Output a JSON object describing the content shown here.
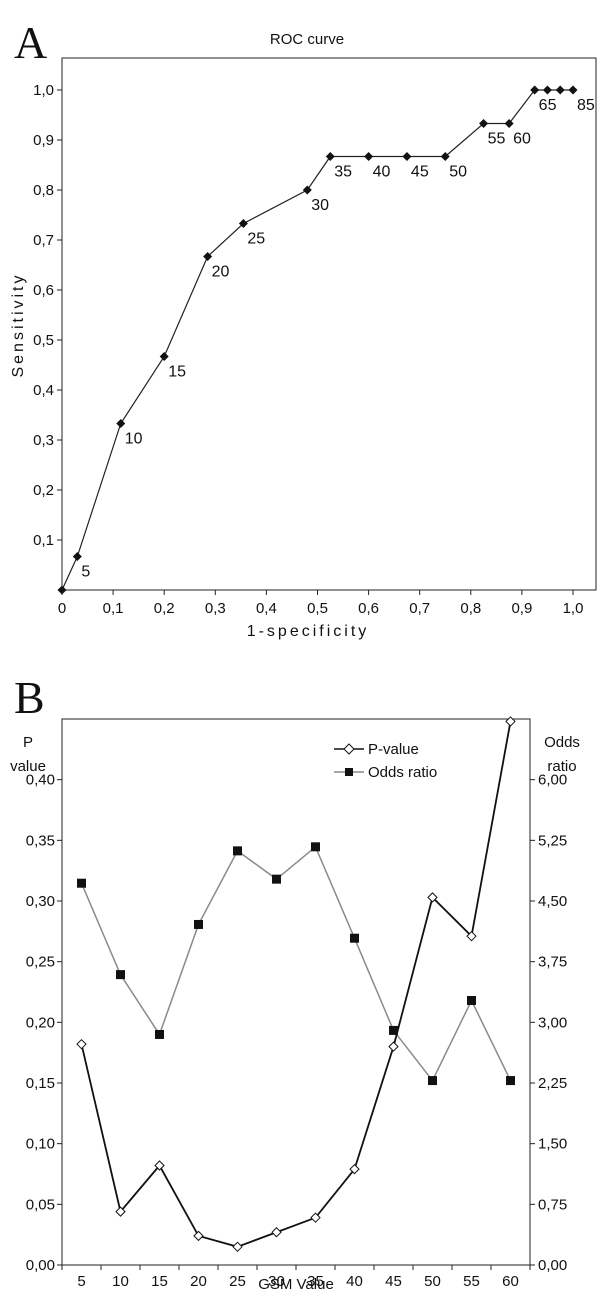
{
  "panels": [
    {
      "letter": "A",
      "chart_data": {
        "type": "line",
        "title": "ROC curve",
        "xlabel": "1-specificity",
        "ylabel": "Sensitivity",
        "xlim": [
          0,
          1
        ],
        "ylim": [
          0,
          1
        ],
        "x_ticks": [
          "0",
          "0,1",
          "0,2",
          "0,3",
          "0,4",
          "0,5",
          "0,6",
          "0,7",
          "0,8",
          "0,9",
          "1,0"
        ],
        "y_ticks": [
          "0,1",
          "0,2",
          "0,3",
          "0,4",
          "0,5",
          "0,6",
          "0,7",
          "0,8",
          "0,9",
          "1,0"
        ],
        "grid": false,
        "series": [
          {
            "x": [
              0,
              0.03,
              0.115,
              0.2,
              0.285,
              0.355,
              0.48,
              0.525,
              0.6,
              0.675,
              0.75,
              0.825,
              0.875,
              0.925,
              0.95,
              0.975,
              1.0
            ],
            "y": [
              0,
              0.067,
              0.333,
              0.467,
              0.667,
              0.733,
              0.8,
              0.867,
              0.867,
              0.867,
              0.867,
              0.933,
              0.933,
              1.0,
              1.0,
              1.0,
              1.0
            ],
            "labels": [
              "",
              "5",
              "10",
              "15",
              "20",
              "25",
              "30",
              "35",
              "40",
              "45",
              "50",
              "55",
              "60",
              "65",
              "",
              "",
              "85"
            ]
          }
        ]
      }
    },
    {
      "letter": "B",
      "chart_data": {
        "type": "line",
        "title": "",
        "xlabel": "GSM Value",
        "ylabel_left": [
          "P",
          "value"
        ],
        "ylabel_right": [
          "Odds",
          "ratio"
        ],
        "categories": [
          "5",
          "10",
          "15",
          "20",
          "25",
          "30",
          "35",
          "40",
          "45",
          "50",
          "55",
          "60"
        ],
        "ylim_left": [
          0,
          0.45
        ],
        "ylim_right": [
          0,
          6.75
        ],
        "y_ticks_left": [
          "0,00",
          "0,05",
          "0,10",
          "0,15",
          "0,20",
          "0,25",
          "0,30",
          "0,35",
          "0,40"
        ],
        "y_ticks_right": [
          "0,00",
          "0,75",
          "1,50",
          "2,25",
          "3,00",
          "3,75",
          "4,50",
          "5,25",
          "6,00"
        ],
        "legend_position": "top-right",
        "grid": false,
        "series": [
          {
            "name": "P-value",
            "axis": "left",
            "marker": "open-diamond",
            "color": "#111111",
            "values": [
              0.182,
              0.044,
              0.082,
              0.024,
              0.015,
              0.027,
              0.039,
              0.079,
              0.18,
              0.303,
              0.271,
              0.448
            ]
          },
          {
            "name": "Odds ratio",
            "axis": "right",
            "marker": "filled-square",
            "color": "#8a8a8a",
            "values": [
              4.72,
              3.59,
              2.85,
              4.21,
              5.12,
              4.77,
              5.17,
              4.04,
              2.9,
              2.28,
              3.27,
              2.28
            ]
          }
        ]
      }
    }
  ]
}
